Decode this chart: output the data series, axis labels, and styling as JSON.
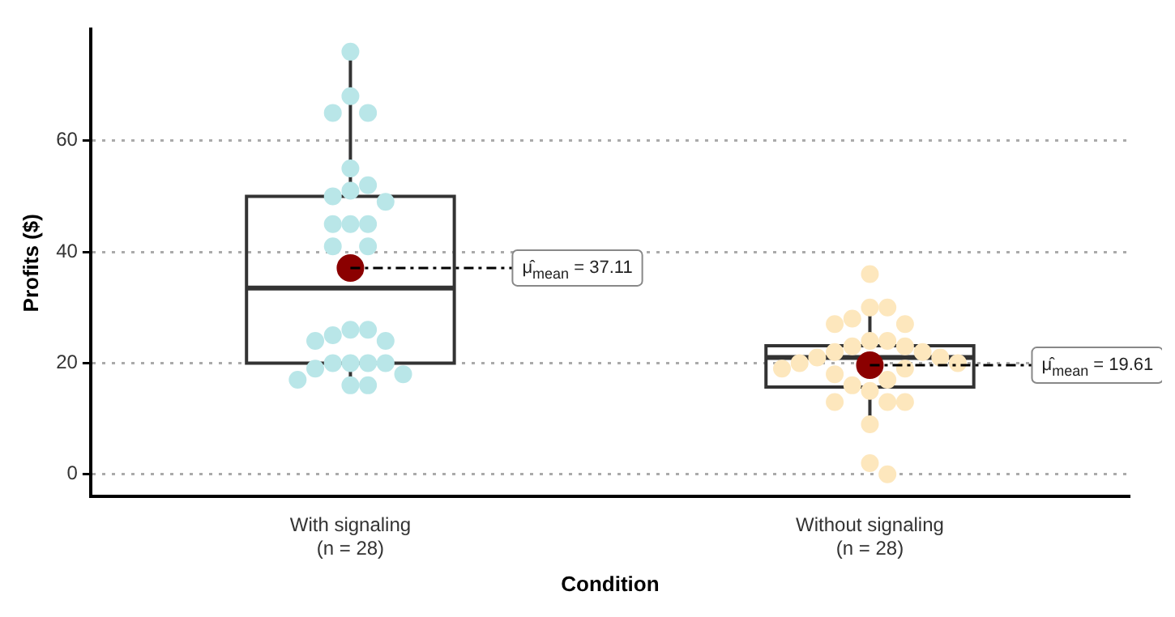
{
  "chart_data": {
    "type": "box",
    "xlabel": "Condition",
    "ylabel": "Profits ($)",
    "categories": [
      "With signaling\n(n = 28)",
      "Without signaling\n(n = 28)"
    ],
    "boxes": [
      {
        "low": 16,
        "q1": 20,
        "median": 33.5,
        "q3": 50,
        "high": 76
      },
      {
        "low": 9,
        "q1": 15.7,
        "median": 21,
        "q3": 23.1,
        "high": 29.7
      }
    ],
    "series": [
      {
        "type": "scatter",
        "color": "#b9e6e8",
        "x": [
          "With signaling\n(n = 28)",
          "With signaling\n(n = 28)",
          "With signaling\n(n = 28)",
          "With signaling\n(n = 28)",
          "With signaling\n(n = 28)",
          "With signaling\n(n = 28)",
          "With signaling\n(n = 28)",
          "With signaling\n(n = 28)",
          "With signaling\n(n = 28)",
          "With signaling\n(n = 28)",
          "With signaling\n(n = 28)",
          "With signaling\n(n = 28)",
          "With signaling\n(n = 28)",
          "With signaling\n(n = 28)",
          "With signaling\n(n = 28)",
          "With signaling\n(n = 28)",
          "With signaling\n(n = 28)",
          "With signaling\n(n = 28)",
          "With signaling\n(n = 28)",
          "With signaling\n(n = 28)",
          "With signaling\n(n = 28)",
          "With signaling\n(n = 28)",
          "With signaling\n(n = 28)",
          "With signaling\n(n = 28)",
          "With signaling\n(n = 28)",
          "With signaling\n(n = 28)",
          "With signaling\n(n = 28)",
          "With signaling\n(n = 28)"
        ],
        "values": [
          76,
          68,
          65,
          65,
          55,
          52,
          51,
          50,
          49,
          45,
          45,
          45,
          41,
          41,
          26,
          26,
          25,
          24,
          24,
          20,
          20,
          20,
          20,
          19,
          18,
          17,
          16,
          16
        ]
      },
      {
        "type": "scatter",
        "color": "#fde7bd",
        "x": [
          "Without signaling\n(n = 28)",
          "Without signaling\n(n = 28)",
          "Without signaling\n(n = 28)",
          "Without signaling\n(n = 28)",
          "Without signaling\n(n = 28)",
          "Without signaling\n(n = 28)",
          "Without signaling\n(n = 28)",
          "Without signaling\n(n = 28)",
          "Without signaling\n(n = 28)",
          "Without signaling\n(n = 28)",
          "Without signaling\n(n = 28)",
          "Without signaling\n(n = 28)",
          "Without signaling\n(n = 28)",
          "Without signaling\n(n = 28)",
          "Without signaling\n(n = 28)",
          "Without signaling\n(n = 28)",
          "Without signaling\n(n = 28)",
          "Without signaling\n(n = 28)",
          "Without signaling\n(n = 28)",
          "Without signaling\n(n = 28)",
          "Without signaling\n(n = 28)",
          "Without signaling\n(n = 28)",
          "Without signaling\n(n = 28)",
          "Without signaling\n(n = 28)",
          "Without signaling\n(n = 28)",
          "Without signaling\n(n = 28)",
          "Without signaling\n(n = 28)",
          "Without signaling\n(n = 28)"
        ],
        "values": [
          36,
          30,
          30,
          28,
          27,
          27,
          24,
          24,
          23,
          23,
          22,
          22,
          21,
          21,
          20,
          20,
          19,
          19,
          18,
          17,
          16,
          15,
          13,
          13,
          13,
          9,
          2,
          0
        ]
      },
      {
        "type": "scatter",
        "color": "#8b0000",
        "x": [
          "With signaling\n(n = 28)",
          "Without signaling\n(n = 28)"
        ],
        "values": [
          37.11,
          19.61
        ]
      }
    ],
    "annotations": [
      {
        "text": "μ̂$_{mean}$ = 37.11",
        "x": "With signaling\n(n = 28)",
        "y": 37.11
      },
      {
        "text": "μ̂$_{mean}$ = 19.61",
        "x": "Without signaling\n(n = 28)",
        "y": 19.61
      }
    ],
    "ylim": [
      -4,
      80
    ],
    "yticks": [
      0,
      20,
      40,
      60
    ],
    "grid": "y",
    "marker": "circle",
    "legend": false
  }
}
